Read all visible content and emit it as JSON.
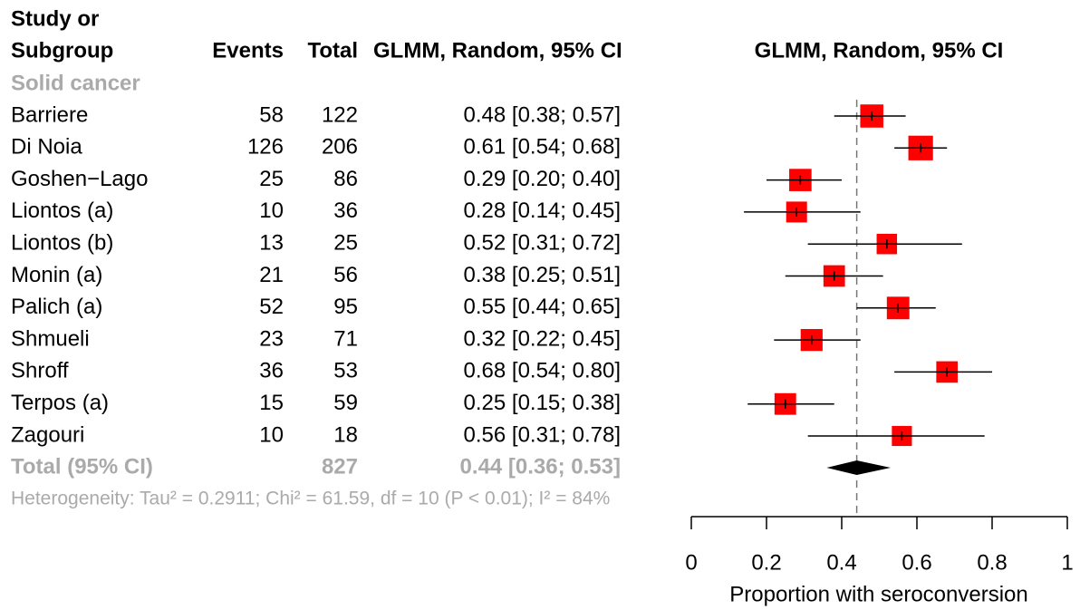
{
  "chart_data": {
    "type": "forest",
    "columns": {
      "study": [
        "Study or",
        "Subgroup"
      ],
      "events": "Events",
      "total": "Total",
      "ci": "GLMM, Random, 95% CI",
      "plot": "GLMM, Random, 95% CI"
    },
    "subgroup": "Solid cancer",
    "categories": [
      "Barriere",
      "Di Noia",
      "Goshen−Lago",
      "Liontos (a)",
      "Liontos (b)",
      "Monin (a)",
      "Palich (a)",
      "Shmueli",
      "Shroff",
      "Terpos (a)",
      "Zagouri"
    ],
    "events": [
      58,
      126,
      25,
      10,
      13,
      21,
      52,
      23,
      36,
      15,
      10
    ],
    "totals": [
      122,
      206,
      86,
      36,
      25,
      56,
      95,
      71,
      53,
      59,
      18
    ],
    "estimates": [
      0.48,
      0.61,
      0.29,
      0.28,
      0.52,
      0.38,
      0.55,
      0.32,
      0.68,
      0.25,
      0.56
    ],
    "lower": [
      0.38,
      0.54,
      0.2,
      0.14,
      0.31,
      0.25,
      0.44,
      0.22,
      0.54,
      0.15,
      0.31
    ],
    "upper": [
      0.57,
      0.68,
      0.4,
      0.45,
      0.72,
      0.51,
      0.65,
      0.45,
      0.8,
      0.38,
      0.78
    ],
    "value_labels": [
      "0.48 [0.38; 0.57]",
      "0.61 [0.54; 0.68]",
      "0.29 [0.20; 0.40]",
      "0.28 [0.14; 0.45]",
      "0.52 [0.31; 0.72]",
      "0.38 [0.25; 0.51]",
      "0.55 [0.44; 0.65]",
      "0.32 [0.22; 0.45]",
      "0.68 [0.54; 0.80]",
      "0.25 [0.15; 0.38]",
      "0.56 [0.31; 0.78]"
    ],
    "color": "#ff0000",
    "total": {
      "label": "Total (95% CI)",
      "n": 827,
      "estimate": 0.44,
      "lower": 0.36,
      "upper": 0.53,
      "value_label": "0.44 [0.36; 0.53]"
    },
    "heterogeneity": "Heterogeneity: Tau² = 0.2911; Chi² = 61.59, df = 10 (P < 0.01); I² = 84%",
    "xlim": [
      0,
      1
    ],
    "xticks": [
      0,
      0.2,
      0.4,
      0.6,
      0.8,
      1
    ],
    "xlabel": "Proportion with seroconversion"
  }
}
